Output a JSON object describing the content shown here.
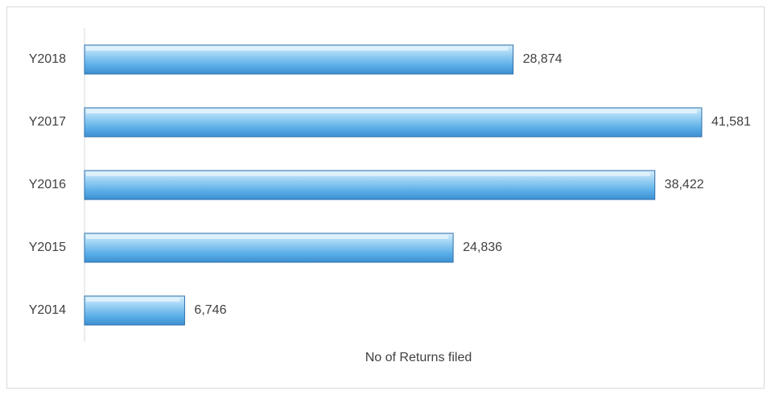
{
  "chart_data": {
    "type": "bar",
    "orientation": "horizontal",
    "x_label": "No of Returns filed",
    "categories": [
      "Y2018",
      "Y2017",
      "Y2016",
      "Y2015",
      "Y2014"
    ],
    "values": [
      28874,
      41581,
      38422,
      24836,
      6746
    ],
    "value_labels": [
      "28,874",
      "41,581",
      "38,422",
      "24,836",
      "6,746"
    ],
    "color": "#5aaee8",
    "xlim": [
      0,
      45000
    ]
  }
}
